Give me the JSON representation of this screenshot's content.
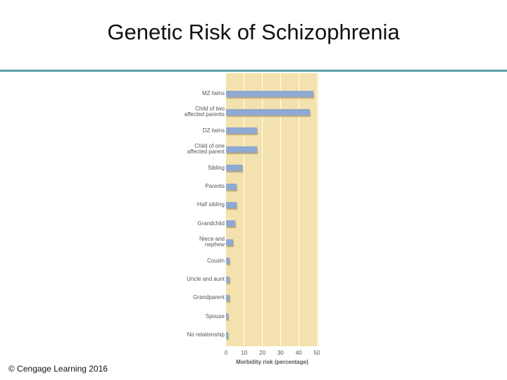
{
  "chart_data": {
    "type": "bar",
    "orientation": "horizontal",
    "title": "Genetic Risk of Schizophrenia",
    "categories": [
      "MZ twins",
      "Child of two affected parents",
      "DZ twins",
      "Child of one affected parent",
      "Sibling",
      "Parents",
      "Half sibling",
      "Grandchild",
      "Niece and nephew",
      "Cousin",
      "Uncle and aunt",
      "Grandparent",
      "Spouse",
      "No relationship"
    ],
    "values": [
      48,
      46,
      17,
      17,
      9,
      6,
      6,
      5,
      4,
      2,
      2,
      2,
      1,
      1
    ],
    "color": "#8fa9d2",
    "xlabel": "Morbidity risk (percentage)",
    "xlim": [
      0,
      50
    ],
    "xticks": [
      0,
      10,
      20,
      30,
      40,
      50
    ],
    "grid": true
  },
  "footer": "© Cengage Learning 2016"
}
